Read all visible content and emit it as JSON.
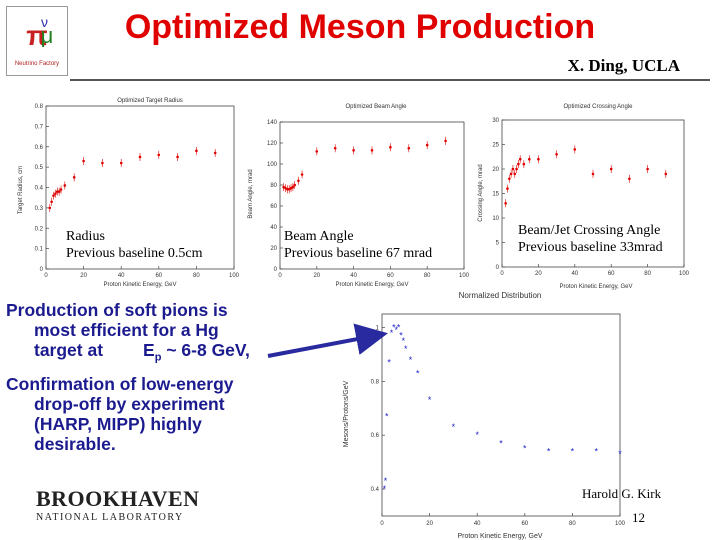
{
  "slide": {
    "title": "Optimized Meson Production",
    "author": "X. Ding,  UCLA",
    "presenter": "Harold G. Kirk",
    "page_number": "12",
    "logo_text": "Neutrino Factory",
    "lab_name": "BROOKHAVEN",
    "lab_subtitle": "NATIONAL LABORATORY"
  },
  "annotations": {
    "radius": [
      "Radius",
      "Previous baseline 0.5cm"
    ],
    "beam_angle": [
      "Beam Angle",
      "Previous baseline 67 mrad"
    ],
    "crossing": [
      "Beam/Jet Crossing Angle",
      "Previous baseline 33mrad"
    ]
  },
  "bullets": {
    "b1_line1": "Production of soft pions is",
    "b1_line2": "most efficient  for a Hg",
    "b1_line3a": "target at",
    "b1_line3b": "E",
    "b1_line3c": "p",
    "b1_line3d": " ~ 6-8 GeV,",
    "b2_line1": "Confirmation of low-energy",
    "b2_line2": "drop-off by experiment",
    "b2_line3": "(HARP, MIPP) highly",
    "b2_line4": "desirable."
  },
  "colors": {
    "title": "#e00000",
    "bullets": "#1b1b8f",
    "red_points": "#e00000",
    "blue_points": "#2222cc",
    "arrow": "#2a2aa0"
  },
  "chart_data": [
    {
      "type": "scatter",
      "title": "Optimized Target Radius",
      "xlabel": "Proton Kinetic Energy, GeV",
      "ylabel": "Target Radius, cm",
      "xlim": [
        0,
        100
      ],
      "ylim": [
        0,
        0.8
      ],
      "xticks": [
        0,
        20,
        40,
        60,
        80,
        100
      ],
      "yticks": [
        0,
        0.1,
        0.2,
        0.3,
        0.4,
        0.5,
        0.6,
        0.7,
        0.8
      ],
      "ytick_labels": [
        "0",
        "0.1",
        "0.2",
        "0.3",
        "0.4",
        "0.5",
        "0.6",
        "0.7",
        "0.8"
      ],
      "series": [
        {
          "name": "Optimized target radius",
          "x": [
            2,
            3,
            4,
            5,
            6,
            7,
            8,
            10,
            15,
            20,
            30,
            40,
            50,
            60,
            70,
            80,
            90
          ],
          "y": [
            0.3,
            0.33,
            0.36,
            0.37,
            0.38,
            0.38,
            0.39,
            0.41,
            0.45,
            0.53,
            0.52,
            0.52,
            0.55,
            0.56,
            0.55,
            0.58,
            0.57
          ]
        }
      ]
    },
    {
      "type": "scatter",
      "title": "Optimized Beam Angle",
      "xlabel": "Proton Kinetic Energy, GeV",
      "ylabel": "Beam Angle, mrad",
      "xlim": [
        0,
        100
      ],
      "ylim": [
        0,
        140
      ],
      "xticks": [
        0,
        20,
        40,
        60,
        80,
        100
      ],
      "yticks": [
        0,
        20,
        40,
        60,
        80,
        100,
        120,
        140
      ],
      "ytick_labels": [
        "0",
        "20",
        "40",
        "60",
        "80",
        "100",
        "120",
        "140"
      ],
      "series": [
        {
          "name": "Optimized beam angle",
          "x": [
            2,
            3,
            4,
            5,
            6,
            7,
            8,
            10,
            12,
            20,
            30,
            40,
            50,
            60,
            70,
            80,
            90
          ],
          "y": [
            78,
            77,
            76,
            76,
            77,
            78,
            80,
            84,
            90,
            112,
            115,
            113,
            113,
            116,
            115,
            118,
            122
          ]
        }
      ]
    },
    {
      "type": "scatter",
      "title": "Optimized Crossing Angle",
      "xlabel": "Proton Kinetic Energy, GeV",
      "ylabel": "Crossing Angle, mrad",
      "xlim": [
        0,
        100
      ],
      "ylim": [
        0,
        30
      ],
      "xticks": [
        0,
        20,
        40,
        60,
        80,
        100
      ],
      "yticks": [
        0,
        5,
        10,
        15,
        20,
        25,
        30
      ],
      "ytick_labels": [
        "0",
        "5",
        "10",
        "15",
        "20",
        "25",
        "30"
      ],
      "series": [
        {
          "name": "Optimized crossing angle",
          "x": [
            2,
            3,
            4,
            5,
            6,
            7,
            8,
            9,
            10,
            12,
            15,
            20,
            30,
            40,
            50,
            60,
            70,
            80,
            90
          ],
          "y": [
            13,
            16,
            18,
            19,
            20,
            19,
            20,
            21,
            22,
            21,
            22,
            22,
            23,
            24,
            19,
            20,
            18,
            20,
            19
          ]
        }
      ]
    },
    {
      "type": "scatter",
      "title": "Normalized Distribution",
      "xlabel": "Proton Kinetic Energy, GeV",
      "ylabel": "Mesons/Protons/GeV",
      "xlim": [
        0,
        100
      ],
      "ylim": [
        0.3,
        1.05
      ],
      "xticks": [
        0,
        20,
        40,
        60,
        80,
        100
      ],
      "yticks": [
        0.4,
        0.6,
        0.8,
        1.0
      ],
      "ytick_labels": [
        "0.4",
        "0.6",
        "0.8",
        "1"
      ],
      "series": [
        {
          "name": "Normalized meson yield",
          "x": [
            1,
            1.5,
            2,
            3,
            4,
            5,
            6,
            7,
            8,
            9,
            10,
            12,
            15,
            20,
            30,
            40,
            50,
            60,
            70,
            80,
            90,
            100
          ],
          "y": [
            0.4,
            0.43,
            0.67,
            0.87,
            0.98,
            1.0,
            0.99,
            1.0,
            0.97,
            0.95,
            0.92,
            0.88,
            0.83,
            0.73,
            0.63,
            0.6,
            0.57,
            0.55,
            0.54,
            0.54,
            0.54,
            0.53
          ]
        }
      ]
    }
  ]
}
